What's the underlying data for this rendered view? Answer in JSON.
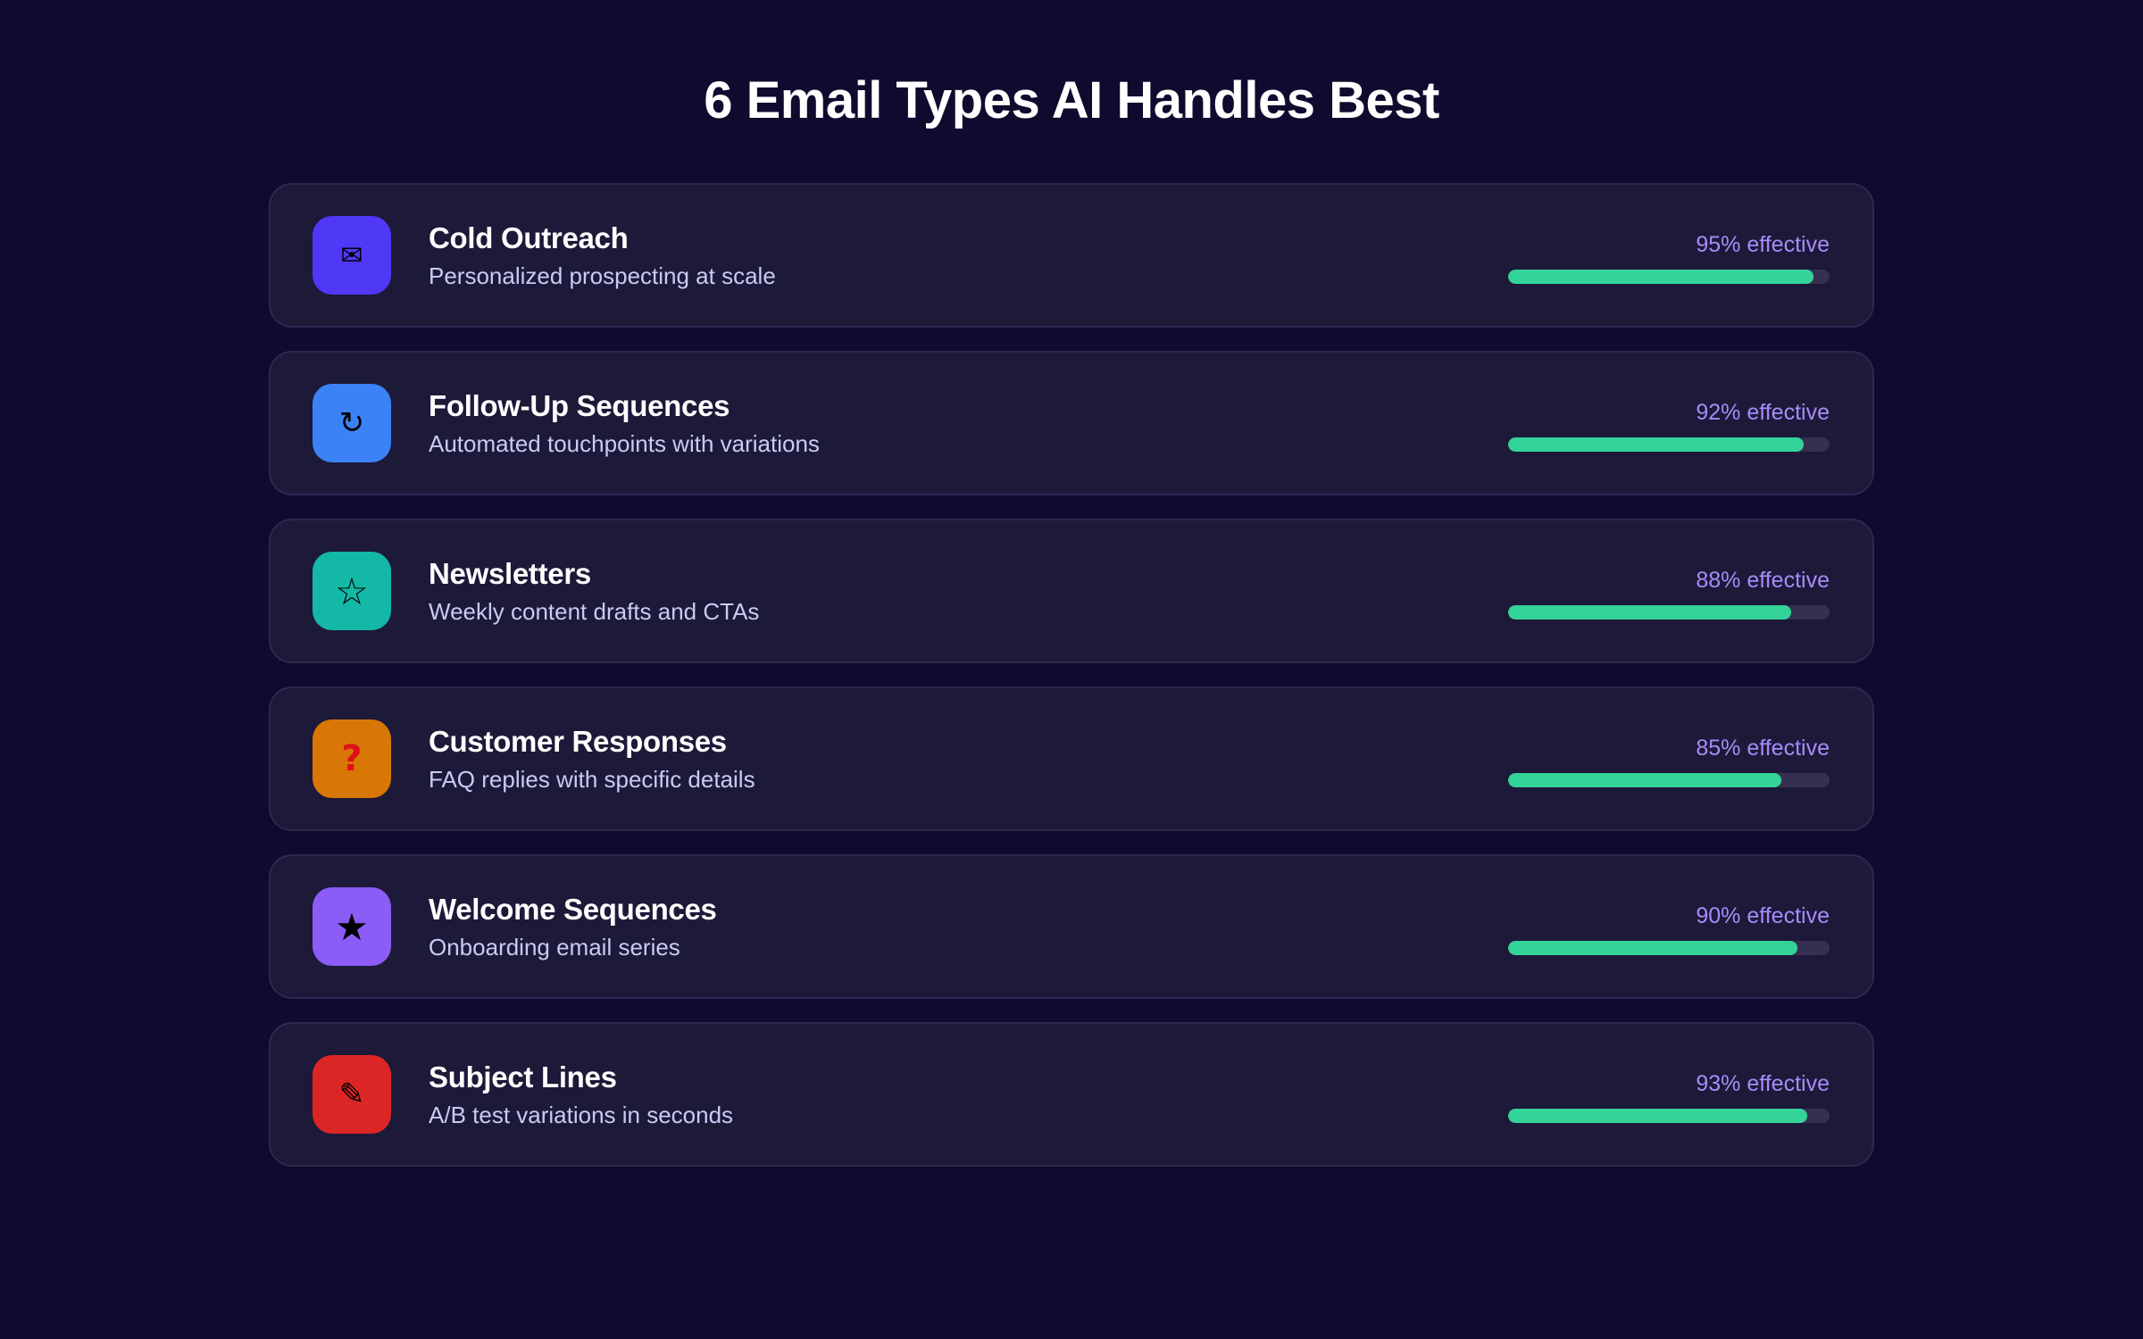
{
  "page": {
    "title": "6 Email Types AI Handles Best"
  },
  "colors": {
    "background": "#0f0b2e",
    "card": "#1d1939",
    "bar_fill": "#34d399",
    "bar_track": "#35304f",
    "metric_text": "#a78bfa"
  },
  "items": [
    {
      "name": "Cold Outreach",
      "description": "Personalized prospecting at scale",
      "percent": 95,
      "metric": "95% effective",
      "icon": "envelope-icon",
      "glyph": "✉",
      "icon_color": "#4f39f6",
      "glyph_color": "#000000",
      "glyph_size": "30px"
    },
    {
      "name": "Follow-Up Sequences",
      "description": "Automated touchpoints with variations",
      "percent": 92,
      "metric": "92% effective",
      "icon": "refresh-icon",
      "glyph": "↻",
      "icon_color": "#3b82f6",
      "glyph_color": "#000000",
      "glyph_size": "34px"
    },
    {
      "name": "Newsletters",
      "description": "Weekly content drafts and CTAs",
      "percent": 88,
      "metric": "88% effective",
      "icon": "star-outline-icon",
      "glyph": "☆",
      "icon_color": "#14b8a6",
      "glyph_color": "#000000",
      "glyph_size": "42px"
    },
    {
      "name": "Customer Responses",
      "description": "FAQ replies with specific details",
      "percent": 85,
      "metric": "85% effective",
      "icon": "question-icon",
      "glyph": "?",
      "icon_color": "#d97706",
      "glyph_color": "#e0101a",
      "glyph_size": "40px"
    },
    {
      "name": "Welcome Sequences",
      "description": "Onboarding email series",
      "percent": 90,
      "metric": "90% effective",
      "icon": "star-filled-icon",
      "glyph": "★",
      "icon_color": "#8b5cf6",
      "glyph_color": "#000000",
      "glyph_size": "42px"
    },
    {
      "name": "Subject Lines",
      "description": "A/B test variations in seconds",
      "percent": 93,
      "metric": "93% effective",
      "icon": "pencil-icon",
      "glyph": "✎",
      "icon_color": "#dc2626",
      "glyph_color": "#000000",
      "glyph_size": "34px"
    }
  ]
}
